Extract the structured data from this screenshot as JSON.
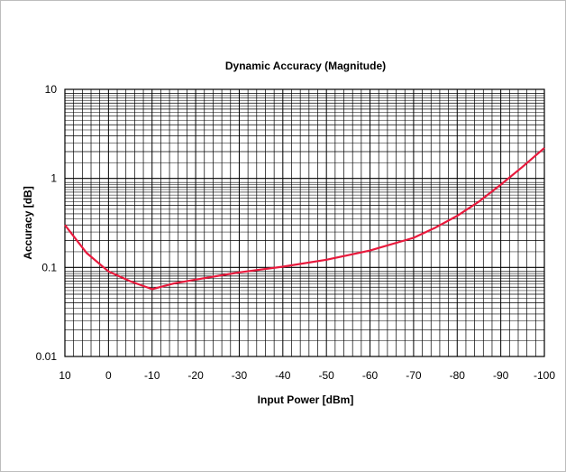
{
  "chart_data": {
    "type": "line",
    "title": "Dynamic Accuracy (Magnitude)",
    "xlabel": "Input Power [dBm]",
    "ylabel": "Accuracy [dB]",
    "x_ticks": [
      "10",
      "0",
      "-10",
      "-20",
      "-30",
      "-40",
      "-50",
      "-60",
      "-70",
      "-80",
      "-90",
      "-100"
    ],
    "y_ticks": [
      "10",
      "1",
      "0.1",
      "0.01"
    ],
    "xlim": [
      10,
      -100
    ],
    "ylim": [
      0.01,
      10
    ],
    "y_scale": "log",
    "grid": true,
    "series": [
      {
        "color": "#e8193c",
        "x": [
          10,
          5,
          0,
          -5,
          -10,
          -15,
          -20,
          -30,
          -40,
          -50,
          -60,
          -70,
          -75,
          -80,
          -85,
          -90,
          -95,
          -100
        ],
        "y": [
          0.3,
          0.145,
          0.09,
          0.07,
          0.057,
          0.066,
          0.073,
          0.088,
          0.102,
          0.122,
          0.155,
          0.215,
          0.28,
          0.38,
          0.55,
          0.85,
          1.35,
          2.2
        ]
      }
    ]
  }
}
